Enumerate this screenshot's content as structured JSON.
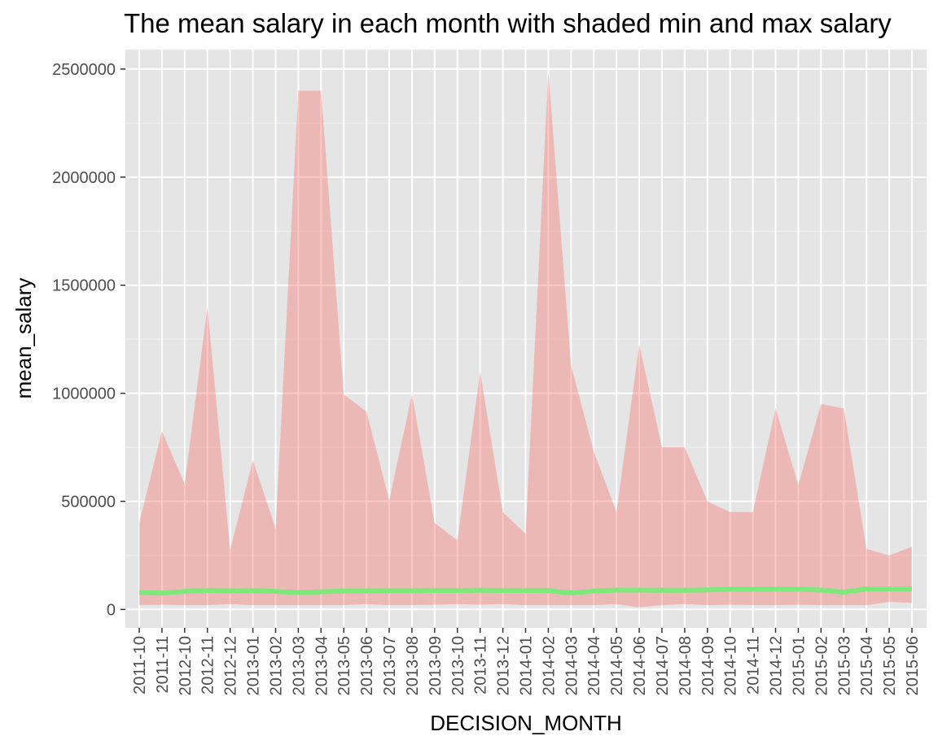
{
  "chart_data": {
    "type": "area",
    "title": "The mean salary in each month with shaded min and max salary",
    "xlabel": "DECISION_MONTH",
    "ylabel": "mean_salary",
    "ylim": [
      -85000,
      2590000
    ],
    "y_ticks": [
      0,
      500000,
      1000000,
      1500000,
      2000000,
      2500000
    ],
    "y_tick_labels": [
      "0",
      "500000",
      "1000000",
      "1500000",
      "2000000",
      "2500000"
    ],
    "grid": true,
    "background_color": "#e5e5e5",
    "categories": [
      "2011-10",
      "2011-11",
      "2012-10",
      "2012-11",
      "2012-12",
      "2013-01",
      "2013-02",
      "2013-03",
      "2013-04",
      "2013-05",
      "2013-06",
      "2013-07",
      "2013-08",
      "2013-09",
      "2013-10",
      "2013-11",
      "2013-12",
      "2014-01",
      "2014-02",
      "2014-03",
      "2014-04",
      "2014-05",
      "2014-06",
      "2014-07",
      "2014-08",
      "2014-09",
      "2014-10",
      "2014-11",
      "2014-12",
      "2015-01",
      "2015-02",
      "2015-03",
      "2015-04",
      "2015-05",
      "2015-06"
    ],
    "series": [
      {
        "role": "max",
        "color": "#f8766d",
        "values": [
          400000,
          825000,
          580000,
          1400000,
          275000,
          690000,
          375000,
          2400000,
          2400000,
          995000,
          915000,
          505000,
          995000,
          400000,
          320000,
          1100000,
          450000,
          350000,
          2490000,
          1130000,
          730000,
          450000,
          1225000,
          750000,
          750000,
          500000,
          450000,
          450000,
          930000,
          575000,
          950000,
          930000,
          280000,
          250000,
          290000
        ]
      },
      {
        "role": "min",
        "color": "#f8766d",
        "values": [
          20000,
          22000,
          20000,
          20000,
          25000,
          20000,
          20000,
          20000,
          20000,
          20000,
          25000,
          20000,
          20000,
          22000,
          25000,
          22000,
          25000,
          20000,
          20000,
          20000,
          20000,
          25000,
          10000,
          20000,
          25000,
          20000,
          22000,
          20000,
          20000,
          22000,
          20000,
          20000,
          20000,
          35000,
          30000
        ]
      },
      {
        "role": "mean",
        "color": "#7ee87c",
        "values": [
          78000,
          76000,
          84000,
          88000,
          85000,
          86000,
          84000,
          78000,
          82000,
          85000,
          85000,
          86000,
          86000,
          88000,
          88000,
          89000,
          88000,
          88000,
          87000,
          76000,
          85000,
          90000,
          90000,
          89000,
          89000,
          91000,
          94000,
          94000,
          94000,
          94000,
          90000,
          80000,
          95000,
          95000,
          95000
        ]
      }
    ]
  }
}
